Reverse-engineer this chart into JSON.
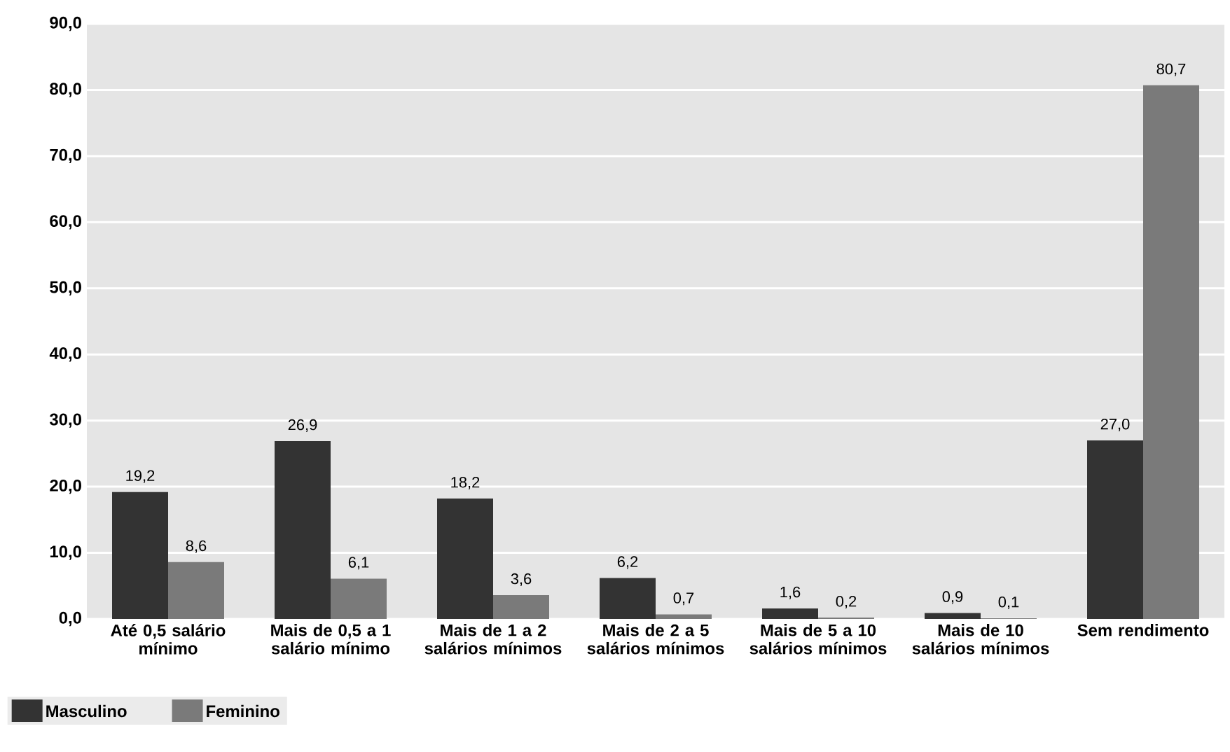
{
  "chart_data": {
    "type": "bar",
    "categories": [
      "Até 0,5 salário mínimo",
      "Mais de 0,5 a 1 salário mínimo",
      "Mais de 1 a 2 salários mínimos",
      "Mais de 2 a 5 salários mínimos",
      "Mais de 5 a 10 salários mínimos",
      "Mais de 10 salários mínimos",
      "Sem rendimento"
    ],
    "series": [
      {
        "name": "Masculino",
        "color": "#333333",
        "values": [
          19.2,
          26.9,
          18.2,
          6.2,
          1.6,
          0.9,
          27.0
        ],
        "value_labels": [
          "19,2",
          "26,9",
          "18,2",
          "6,2",
          "1,6",
          "0,9",
          "27,0"
        ]
      },
      {
        "name": "Feminino",
        "color": "#7a7a7a",
        "values": [
          8.6,
          6.1,
          3.6,
          0.7,
          0.2,
          0.1,
          80.7
        ],
        "value_labels": [
          "8,6",
          "6,1",
          "3,6",
          "0,7",
          "0,2",
          "0,1",
          "80,7"
        ]
      }
    ],
    "ylim": [
      0,
      90
    ],
    "yticks": [
      {
        "value": 0,
        "label": "0,0"
      },
      {
        "value": 10,
        "label": "10,0"
      },
      {
        "value": 20,
        "label": "20,0"
      },
      {
        "value": 30,
        "label": "30,0"
      },
      {
        "value": 40,
        "label": "40,0"
      },
      {
        "value": 50,
        "label": "50,0"
      },
      {
        "value": 60,
        "label": "60,0"
      },
      {
        "value": 70,
        "label": "70,0"
      },
      {
        "value": 80,
        "label": "80,0"
      },
      {
        "value": 90,
        "label": "90,0"
      }
    ],
    "grid": "y",
    "legend": "bottom left"
  }
}
